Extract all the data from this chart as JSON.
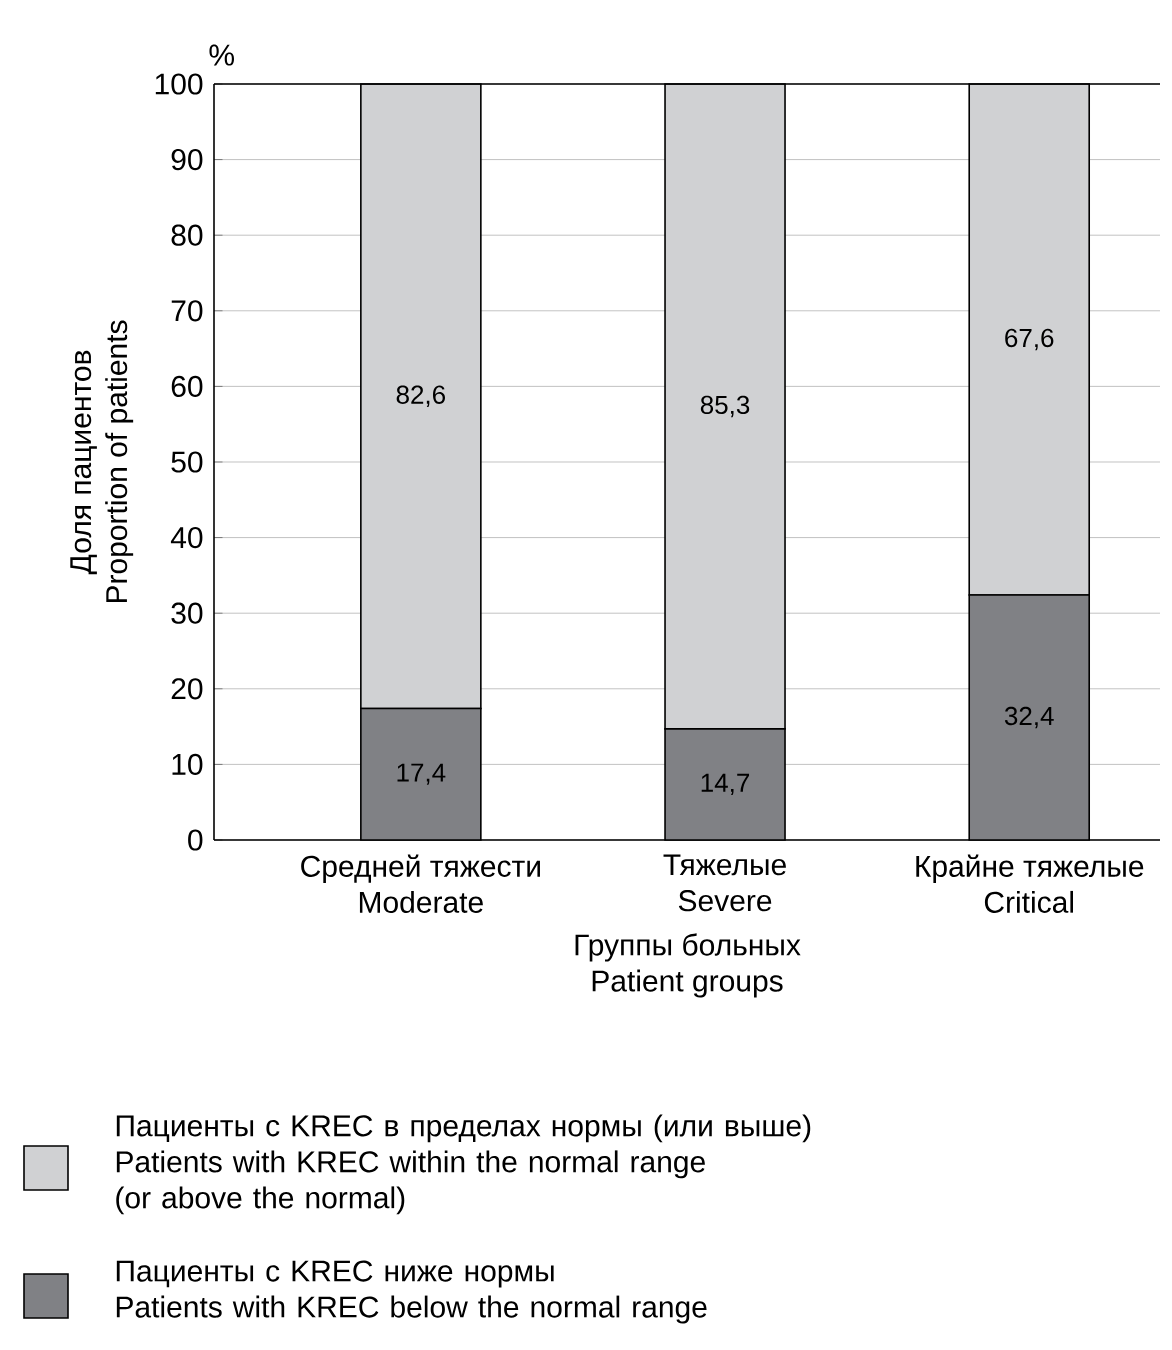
{
  "chart_data": {
    "type": "bar",
    "stacked": true,
    "categories": [
      "Средней тяжести\nModerate",
      "Тяжелые\nSevere",
      "Крайне тяжелые\nCritical"
    ],
    "xlabel": "Группы больных\nPatient groups",
    "ylabel": "Доля пациентов\nProportion of patients",
    "annotations": [
      "%"
    ],
    "series": [
      {
        "name": "Пациенты с KREC ниже нормы\nPatients with KREC below the normal range",
        "color": "#808185",
        "values": [
          17.4,
          14.7,
          32.4
        ],
        "value_labels": [
          "17,4",
          "14,7",
          "32,4"
        ]
      },
      {
        "name": "Пациенты с KREC в пределах нормы (или выше)\nPatients with KREC within the normal range\n(or above the normal)",
        "color": "#d0d1d3",
        "values": [
          82.6,
          85.3,
          67.6
        ],
        "value_labels": [
          "82,6",
          "85,3",
          "67,6"
        ]
      }
    ],
    "ylim": [
      0,
      100
    ],
    "yticks": [
      0,
      10,
      20,
      30,
      40,
      50,
      60,
      70,
      80,
      90,
      100
    ],
    "grid": "y",
    "legend": "bottom"
  }
}
